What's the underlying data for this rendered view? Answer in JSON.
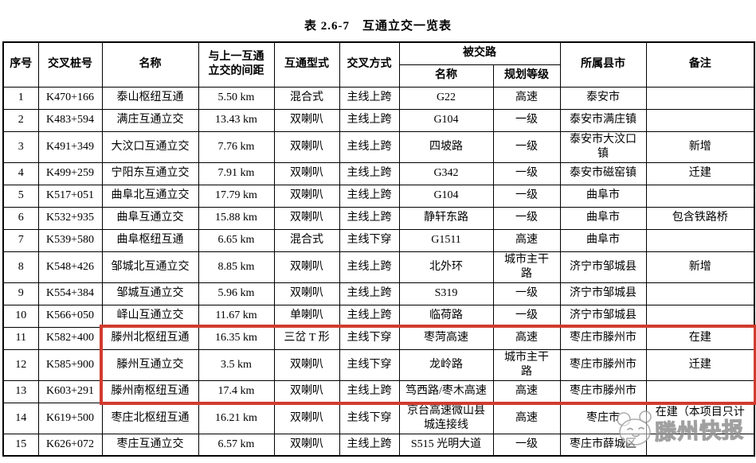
{
  "title": "表 2.6-7　互通立交一览表",
  "table": {
    "headers": {
      "seq": "序号",
      "station": "交叉桩号",
      "name": "名称",
      "spacing": "与上一互通立交的间距",
      "type": "互通型式",
      "crossing": "交叉方式",
      "crossed_road": "被交路",
      "crossed_name": "名称",
      "crossed_grade": "规划等级",
      "county": "所属县市",
      "remark": "备注"
    },
    "col_keys": [
      "seq",
      "station",
      "name",
      "spacing",
      "type",
      "crossing",
      "road-name",
      "road-grade",
      "county",
      "remark"
    ],
    "rows": [
      [
        "1",
        "K470+166",
        "泰山枢纽互通",
        "5.50 km",
        "混合式",
        "主线上跨",
        "G22",
        "高速",
        "泰安市",
        ""
      ],
      [
        "2",
        "K483+594",
        "满庄互通立交",
        "13.43 km",
        "双喇叭",
        "主线上跨",
        "G104",
        "一级",
        "泰安市满庄镇",
        ""
      ],
      [
        "3",
        "K491+349",
        "大汶口互通立交",
        "7.76 km",
        "双喇叭",
        "主线上跨",
        "四坡路",
        "一级",
        "泰安市大汶口镇",
        "新增"
      ],
      [
        "4",
        "K499+259",
        "宁阳东互通立交",
        "7.91 km",
        "双喇叭",
        "主线上跨",
        "G342",
        "一级",
        "泰安市磁窑镇",
        "迁建"
      ],
      [
        "5",
        "K517+051",
        "曲阜北互通立交",
        "17.79 km",
        "双喇叭",
        "主线上跨",
        "G104",
        "一级",
        "曲阜市",
        ""
      ],
      [
        "6",
        "K532+935",
        "曲阜互通立交",
        "15.88 km",
        "双喇叭",
        "主线上跨",
        "静轩东路",
        "一级",
        "曲阜市",
        "包含铁路桥"
      ],
      [
        "7",
        "K539+580",
        "曲阜枢纽互通",
        "6.65 km",
        "混合式",
        "主线下穿",
        "G1511",
        "高速",
        "曲阜市",
        ""
      ],
      [
        "8",
        "K548+426",
        "邹城北互通立交",
        "8.85 km",
        "双喇叭",
        "主线上跨",
        "北外环",
        "城市主干路",
        "济宁市邹城县",
        "新增"
      ],
      [
        "9",
        "K554+384",
        "邹城互通立交",
        "5.96 km",
        "双喇叭",
        "主线上跨",
        "S319",
        "一级",
        "济宁市邹城县",
        ""
      ],
      [
        "10",
        "K566+050",
        "峄山互通立交",
        "11.67 km",
        "单喇叭",
        "主线上跨",
        "临荷路",
        "一级",
        "济宁市邹城县",
        ""
      ],
      [
        "11",
        "K582+400",
        "滕州北枢纽互通",
        "16.35 km",
        "三岔 T 形",
        "主线下穿",
        "枣菏高速",
        "高速",
        "枣庄市滕州市",
        "在建"
      ],
      [
        "12",
        "K585+900",
        "滕州互通立交",
        "3.5 km",
        "双喇叭",
        "主线下穿",
        "龙岭路",
        "城市主干路",
        "枣庄市滕州市",
        "迁建"
      ],
      [
        "13",
        "K603+291",
        "滕州南枢纽互通",
        "17.4 km",
        "双喇叭",
        "主线上跨",
        "笃西路/枣木高速",
        "高速",
        "枣庄市滕州市",
        ""
      ],
      [
        "14",
        "K619+500",
        "枣庄北枢纽互通",
        "16.21 km",
        "双喇叭",
        "主线下穿",
        "京台高速微山县城连接线",
        "高速",
        "枣庄市",
        "在建（本项目只计"
      ],
      [
        "15",
        "K626+072",
        "枣庄互通立交",
        "6.57 km",
        "双喇叭",
        "主线上跨",
        "S515 光明大道",
        "一级",
        "枣庄市薛城区",
        ""
      ]
    ]
  },
  "highlight": {
    "row_start": 11,
    "row_end": 13,
    "col_start": 3,
    "color": "#d23b2e"
  },
  "watermark": {
    "text": "滕州快报"
  }
}
